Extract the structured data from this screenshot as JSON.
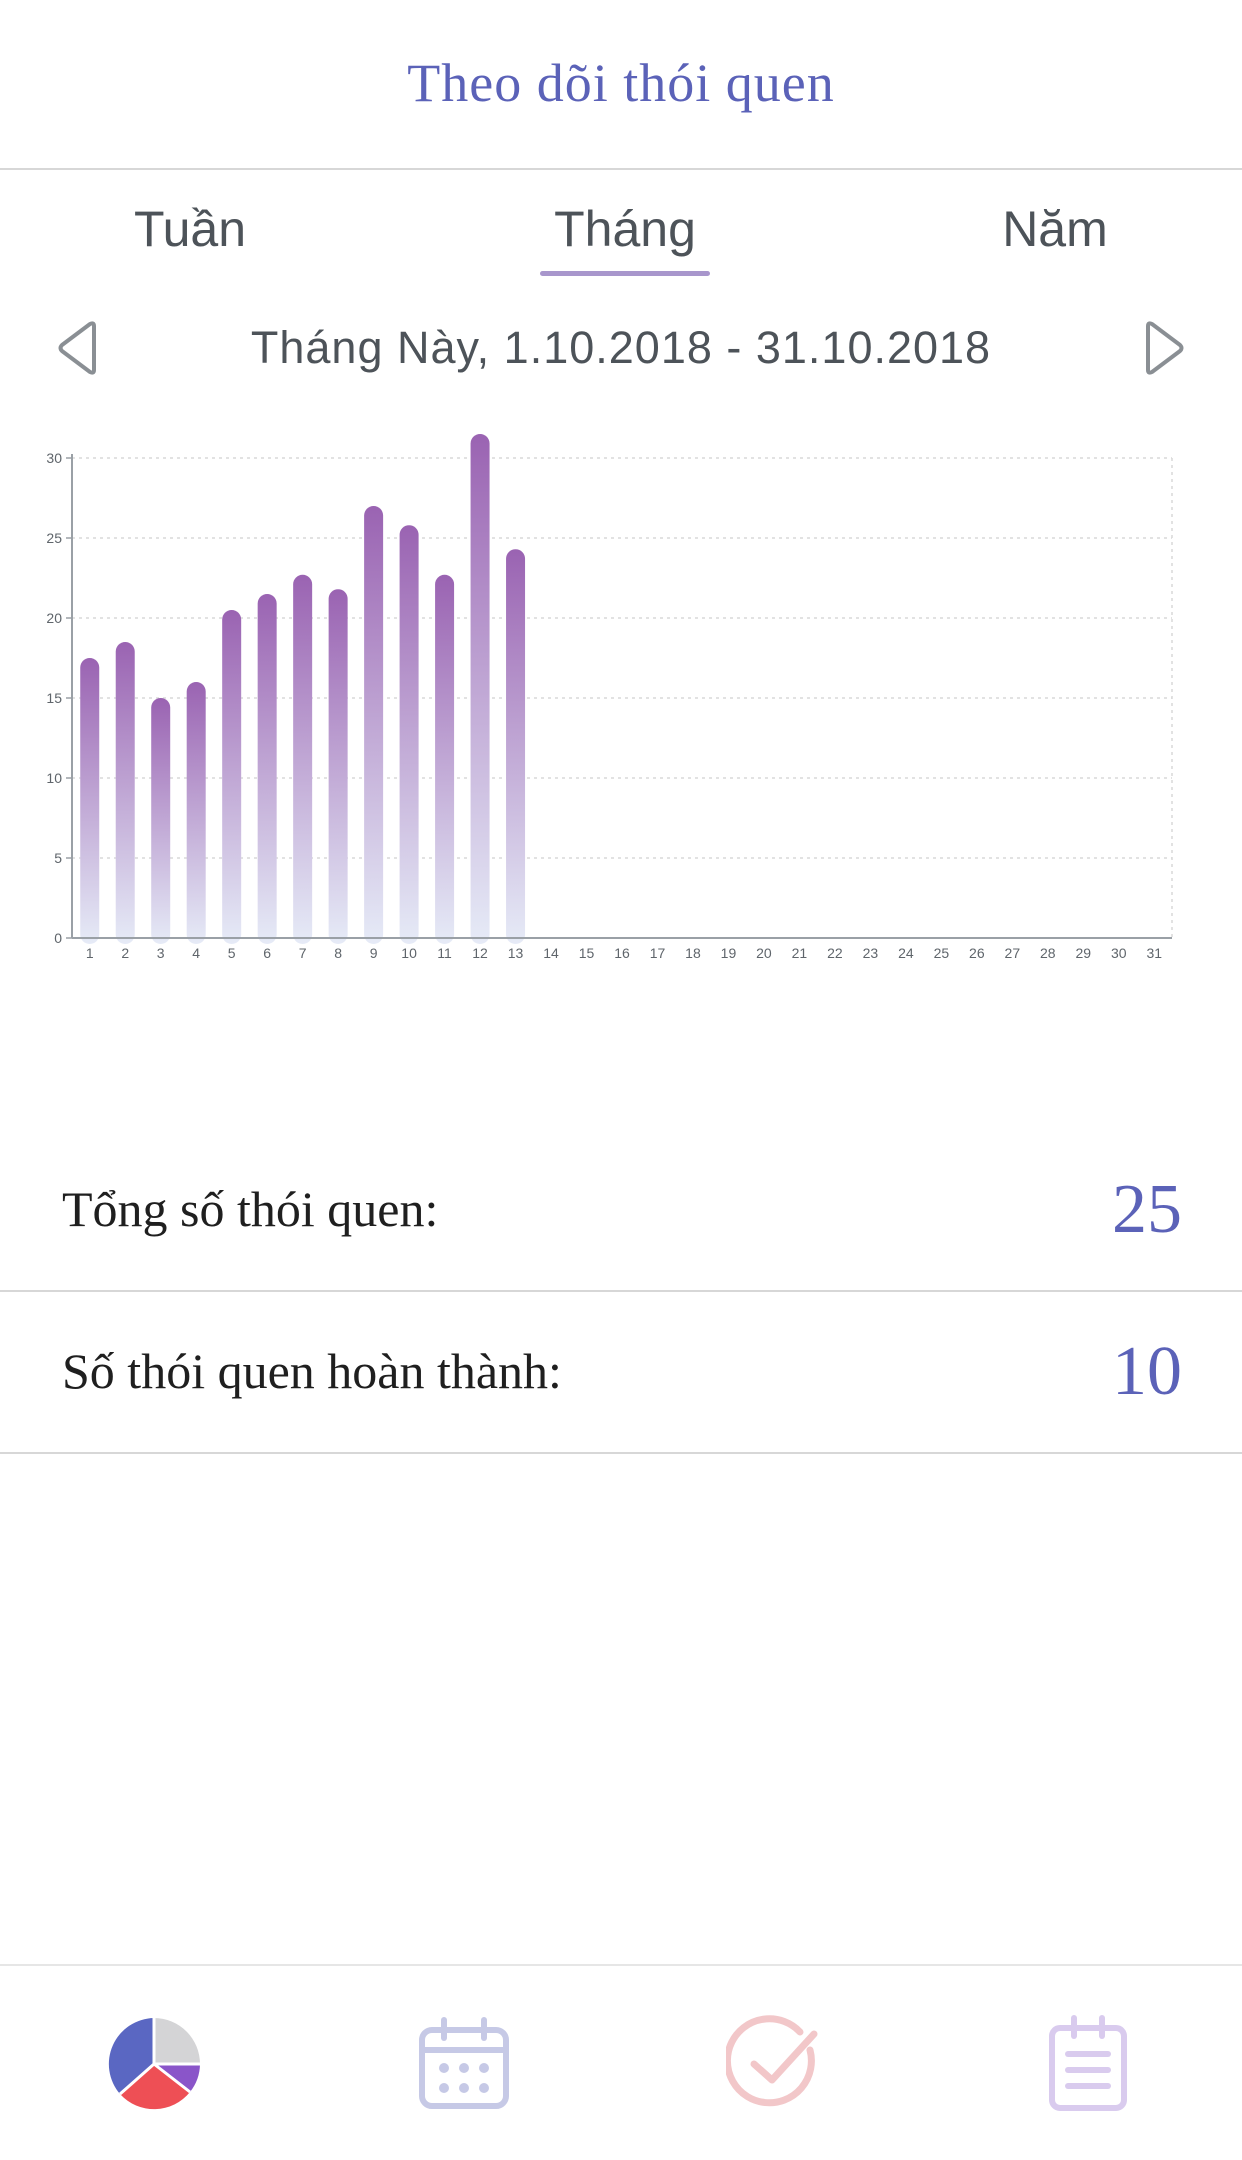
{
  "header": {
    "title": "Theo dõi thói quen"
  },
  "tabs": [
    {
      "label": "Tuần",
      "active": false
    },
    {
      "label": "Tháng",
      "active": true
    },
    {
      "label": "Năm",
      "active": false
    }
  ],
  "range": {
    "label": "Tháng Này, 1.10.2018 - 31.10.2018",
    "prev_icon": "chevron-left-icon",
    "next_icon": "chevron-right-icon"
  },
  "chart_data": {
    "type": "bar",
    "categories": [
      "1",
      "2",
      "3",
      "4",
      "5",
      "6",
      "7",
      "8",
      "9",
      "10",
      "11",
      "12",
      "13",
      "14",
      "15",
      "16",
      "17",
      "18",
      "19",
      "20",
      "21",
      "22",
      "23",
      "24",
      "25",
      "26",
      "27",
      "28",
      "29",
      "30",
      "31"
    ],
    "values": [
      17.5,
      18.5,
      15,
      16,
      20.5,
      21.5,
      22.7,
      21.8,
      27,
      25.8,
      22.7,
      31.5,
      24.3,
      0,
      0,
      0,
      0,
      0,
      0,
      0,
      0,
      0,
      0,
      0,
      0,
      0,
      0,
      0,
      0,
      0,
      0
    ],
    "yticks": [
      0,
      5,
      10,
      15,
      20,
      25,
      30
    ],
    "ylim": [
      0,
      30
    ],
    "grid": true,
    "bar_color_top": "#9a63b2",
    "bar_color_bottom": "#e6ebf7"
  },
  "stats": {
    "total_label": "Tổng số thói quen:",
    "total_value": "25",
    "done_label": "Số thói quen hoàn thành:",
    "done_value": "10"
  },
  "tabbar": {
    "items": [
      {
        "icon": "pie-chart-icon"
      },
      {
        "icon": "calendar-icon"
      },
      {
        "icon": "check-icon"
      },
      {
        "icon": "notes-icon"
      }
    ]
  },
  "colors": {
    "accent": "#5b62b8",
    "tab_underline": "#a896cc",
    "text": "#4d5359"
  }
}
